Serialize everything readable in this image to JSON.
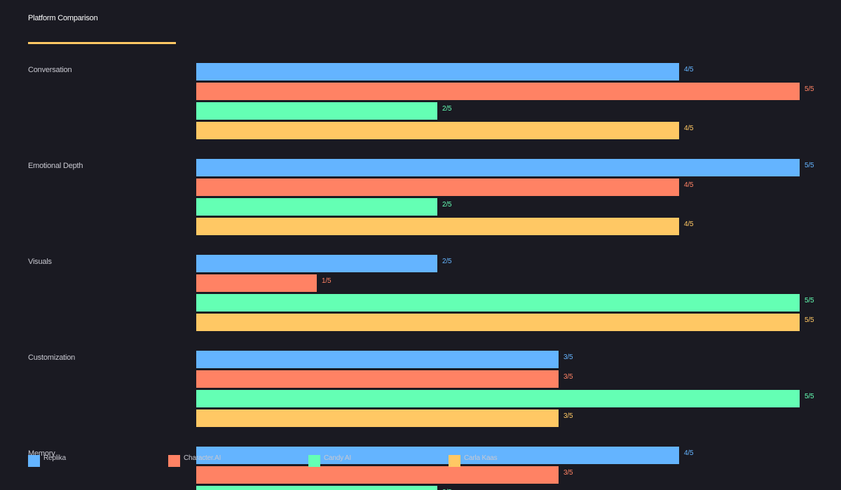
{
  "chart_data": {
    "type": "bar",
    "orientation": "horizontal",
    "title": "Platform Comparison",
    "categories": [
      "Conversation",
      "Emotional Depth",
      "Visuals",
      "Customization",
      "Memory"
    ],
    "xlim": [
      0,
      5
    ],
    "value_suffix": "/5",
    "series": [
      {
        "name": "Replika",
        "color": "#64b4ff",
        "values": [
          4,
          5,
          2,
          3,
          4
        ]
      },
      {
        "name": "Character.AI",
        "color": "#ff8264",
        "values": [
          5,
          4,
          1,
          3,
          3
        ]
      },
      {
        "name": "Candy AI",
        "color": "#64ffb4",
        "values": [
          2,
          2,
          5,
          5,
          2
        ]
      },
      {
        "name": "Carla Kaas",
        "color": "#ffc864",
        "values": [
          4,
          4,
          5,
          3,
          null
        ]
      }
    ],
    "legend_position": "bottom",
    "grid": false
  },
  "accent_color": "#ffc864"
}
